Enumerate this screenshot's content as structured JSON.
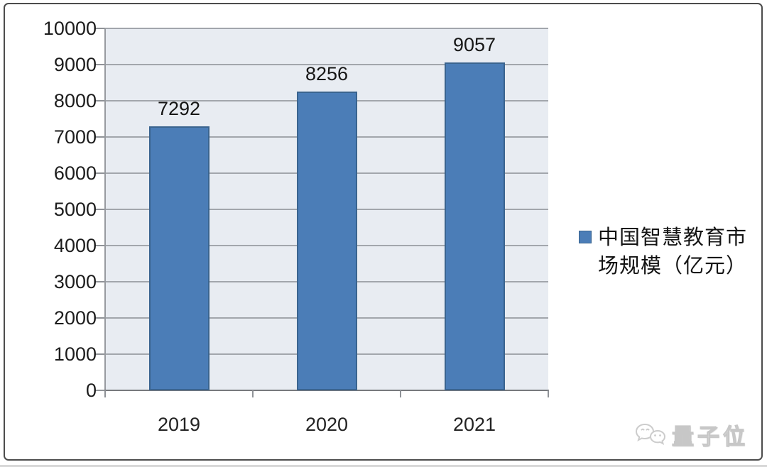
{
  "chart_data": {
    "type": "bar",
    "title": "",
    "categories": [
      "2019",
      "2020",
      "2021"
    ],
    "values": [
      7292,
      8256,
      9057
    ],
    "series_name": "中国智慧教育市场规模（亿元）",
    "xlabel": "",
    "ylabel": "",
    "ylim": [
      0,
      10000
    ],
    "ytick_interval": 1000,
    "legend_position": "right",
    "grid": "horizontal",
    "bar_color": "#4b7db7",
    "bar_border_color": "#3a648f",
    "plot_bg_color": "#e8ecf2",
    "gridline_color": "#a2a6ac",
    "axis_color": "#77797d",
    "text_color": "#1c1c1c"
  },
  "watermark": {
    "text": "量子位",
    "icon": "wechat-chat-bubbles-icon",
    "color": "#c7c7c7"
  }
}
